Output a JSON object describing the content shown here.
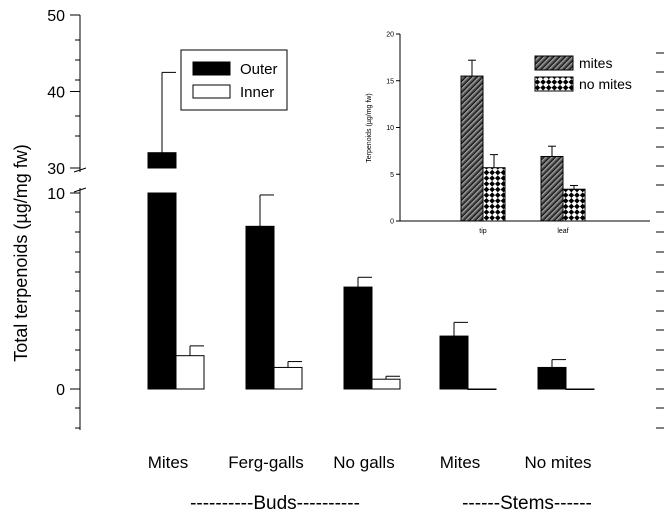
{
  "chart_data": [
    {
      "type": "bar",
      "ylabel": "Total terpenoids (µg/mg fw)",
      "y_axis": "broken",
      "lower_segment_ticks": [
        "0",
        "10"
      ],
      "upper_segment_ticks": [
        "30",
        "40",
        "50"
      ],
      "ylim": [
        0,
        50
      ],
      "categories": [
        "Mites",
        "Ferg-galls",
        "No galls",
        "Mites",
        "No mites"
      ],
      "group_labels": [
        "----------Buds----------",
        "------Stems------"
      ],
      "series": [
        {
          "name": "Outer",
          "color": "#000000",
          "values": [
            32.0,
            8.3,
            5.2,
            2.7,
            1.1
          ],
          "errors": [
            10.5,
            1.6,
            0.5,
            0.7,
            0.4
          ]
        },
        {
          "name": "Inner",
          "color": "#ffffff",
          "values": [
            1.7,
            1.1,
            0.5,
            0.0,
            0.0
          ],
          "errors": [
            0.5,
            0.3,
            0.15,
            0.0,
            0.0
          ]
        }
      ],
      "legend": "top-center",
      "grid": false
    },
    {
      "type": "bar",
      "inset": true,
      "ylabel": "Terpenoids (µg/mg fw)",
      "yticks": [
        "0",
        "5",
        "10",
        "15",
        "20"
      ],
      "ylim": [
        0,
        20
      ],
      "categories": [
        "tip",
        "leaf"
      ],
      "series": [
        {
          "name": "mites",
          "pattern": "diagonal-hatch",
          "values": [
            15.5,
            6.9
          ],
          "errors": [
            1.7,
            1.1
          ]
        },
        {
          "name": "no mites",
          "pattern": "diamond-checker",
          "values": [
            5.7,
            3.4
          ],
          "errors": [
            1.4,
            0.4
          ]
        }
      ],
      "legend": "top-right",
      "grid": false
    }
  ]
}
